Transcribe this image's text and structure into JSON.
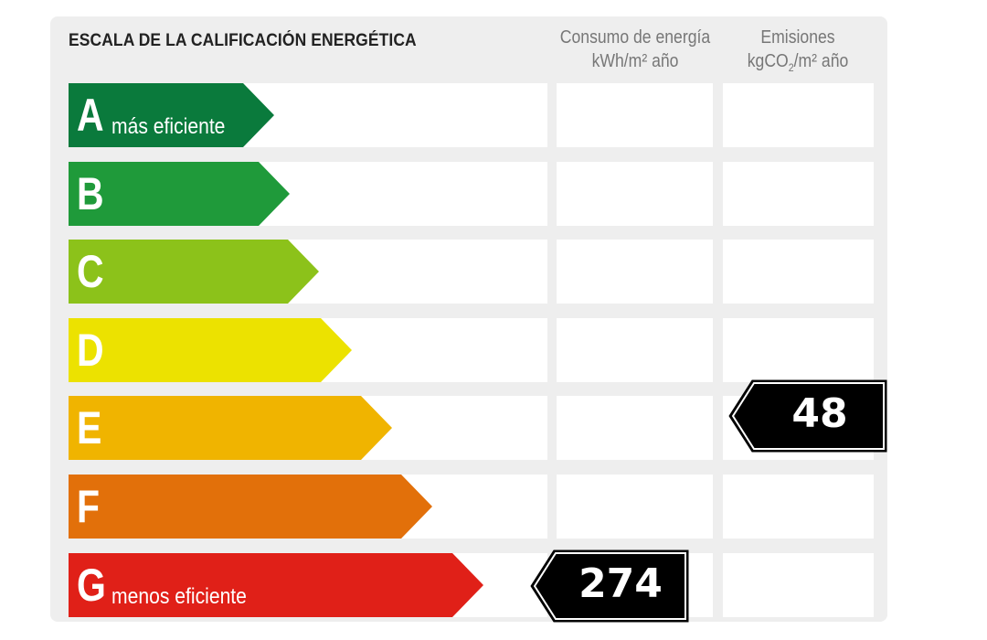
{
  "title": "ESCALA DE LA CALIFICACIÓN ENERGÉTICA",
  "columns": {
    "consumo": {
      "line1": "Consumo de energía",
      "line2": "kWh/m² año"
    },
    "emisiones": {
      "line1": "Emisiones",
      "line2_pre": "kgCO",
      "line2_sub": "2",
      "line2_post": "/m² año"
    }
  },
  "ratings": [
    {
      "letter": "A",
      "desc": "más eficiente",
      "color": "#0a7a3c"
    },
    {
      "letter": "B",
      "desc": "",
      "color": "#1f9a3a"
    },
    {
      "letter": "C",
      "desc": "",
      "color": "#8cc21a"
    },
    {
      "letter": "D",
      "desc": "",
      "color": "#ece200"
    },
    {
      "letter": "E",
      "desc": "",
      "color": "#f0b400"
    },
    {
      "letter": "F",
      "desc": "",
      "color": "#e2700a"
    },
    {
      "letter": "G",
      "desc": "menos eficiente",
      "color": "#e02018"
    }
  ],
  "consumo_value": {
    "value": "274",
    "rating": "G"
  },
  "emisiones_value": {
    "value": "48",
    "rating": "E"
  }
}
